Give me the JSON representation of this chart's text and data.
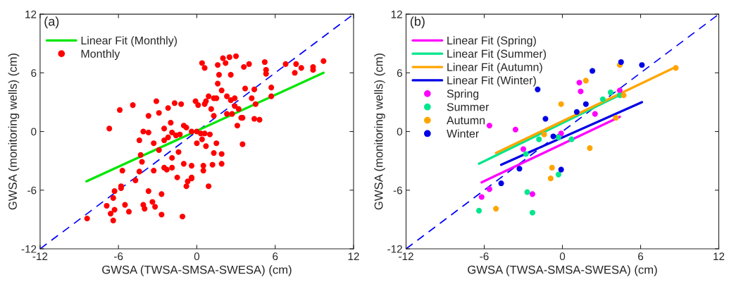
{
  "chart_data": [
    {
      "type": "scatter",
      "annotations": [
        "(a)"
      ],
      "xlabel": "GWSA (TWSA-SMSA-SWESA) (cm)",
      "ylabel": "GWSA (monitoring wells) (cm)",
      "xlim": [
        -12,
        12
      ],
      "ylim": [
        -12,
        12
      ],
      "xticks": [
        -12,
        -6,
        0,
        6,
        12
      ],
      "yticks": [
        -12,
        -6,
        0,
        6,
        12
      ],
      "grid": false,
      "legend": "top left",
      "series": [
        {
          "type": "line",
          "color": "#0000ff",
          "line_style": "dashed",
          "marker": "none",
          "x": [
            -12,
            12
          ],
          "values": [
            -12,
            12
          ]
        },
        {
          "type": "line",
          "name": "Linear Fit (Monthly)",
          "color": "#00e600",
          "line_style": "solid",
          "marker": "none",
          "x": [
            -8.45,
            9.7
          ],
          "values": [
            -5.1,
            6.0
          ]
        },
        {
          "type": "scatter",
          "name": "Monthly",
          "color": "#ff0000",
          "marker": "circle",
          "x": [
            9.7,
            8.9,
            8.9,
            8.0,
            7.6,
            7.5,
            6.8,
            5.2,
            5.3,
            5.3,
            5.7,
            5.7,
            4.0,
            3.6,
            3.0,
            2.5,
            2.0,
            2.2,
            1.6,
            1.7,
            2.6,
            0.4,
            0.6,
            1.6,
            1.9,
            3.7,
            4.4,
            4.2,
            4.5,
            2.3,
            2.9,
            2.6,
            2.9,
            3.2,
            3.4,
            3.5,
            4.4,
            4.8,
            2.3,
            2.7,
            3.1,
            3.5,
            0.9,
            1.3,
            1.5,
            -0.1,
            0.1,
            0.6,
            0.7,
            1.1,
            1.3,
            -1.7,
            -1.2,
            -2.2,
            -3.1,
            -4.9,
            -5.9,
            -2.9,
            -3.7,
            -6.7,
            -4.1,
            -3.7,
            -2.5,
            -2.0,
            -1.9,
            -1.6,
            -1.3,
            -2.2,
            -2.5,
            -1.0,
            -0.8,
            -0.4,
            0.0,
            0.3,
            0.6,
            1.0,
            0.4,
            0.0,
            0.7,
            1.5,
            1.3,
            1.9,
            1.2,
            1.9,
            0.5,
            0.5,
            -0.4,
            -1.0,
            -1.4,
            -1.9,
            -1.9,
            -2.5,
            -2.3,
            -3.3,
            -2.9,
            -4.4,
            -4.3,
            -4.2,
            -4.4,
            -3.3,
            -5.7,
            -4.7,
            -5.8,
            -5.8,
            -6.3,
            -6.4,
            -6.9,
            -6.3,
            -6.6,
            -6.4,
            -8.4,
            -5.5,
            -5.2,
            -4.1,
            -4.0,
            -3.4,
            -3.2,
            -3.7,
            -2.7,
            -2.7,
            -1.1,
            -1.5,
            -0.4,
            -0.4,
            -0.7,
            -0.8,
            0.9
          ],
          "values": [
            7.2,
            6.6,
            6.3,
            6.5,
            6.9,
            6.0,
            6.9,
            7.1,
            6.3,
            5.9,
            4.5,
            3.6,
            6.9,
            6.6,
            7.7,
            7.6,
            7.5,
            7.0,
            6.8,
            5.8,
            5.8,
            7.0,
            6.5,
            4.9,
            4.2,
            4.4,
            4.3,
            3.4,
            2.8,
            3.6,
            3.4,
            3.2,
            2.6,
            2.3,
            1.4,
            1.4,
            1.3,
            1.2,
            1.8,
            1.8,
            0.6,
            -1.3,
            3.6,
            3.4,
            3.4,
            3.1,
            2.7,
            2.8,
            3.1,
            2.3,
            1.6,
            2.9,
            2.8,
            2.4,
            3.1,
            2.7,
            2.2,
            1.9,
            1.6,
            0.3,
            0.0,
            -0.1,
            0.3,
            0.9,
            -0.1,
            -0.4,
            -0.3,
            -0.6,
            -0.9,
            0.6,
            0.4,
            0.0,
            0.0,
            -0.2,
            -0.2,
            -0.3,
            -0.8,
            -1.2,
            -1.5,
            -1.2,
            -2.2,
            -2.3,
            -3.4,
            -3.3,
            -3.5,
            -4.0,
            -3.5,
            -3.3,
            -2.1,
            -2.7,
            -3.7,
            -3.7,
            -3.9,
            -1.2,
            -1.9,
            -0.9,
            -2.4,
            -3.1,
            -4.1,
            -4.0,
            -4.0,
            -5.0,
            -5.6,
            -5.8,
            -6.1,
            -6.8,
            -7.6,
            -8.0,
            -8.4,
            -9.1,
            -8.9,
            -7.5,
            -8.2,
            -7.5,
            -7.9,
            -7.2,
            -7.7,
            -6.1,
            -6.4,
            -8.5,
            -8.7,
            -4.7,
            -4.7,
            -4.8,
            -5.1,
            -5.6,
            -5.6
          ]
        }
      ]
    },
    {
      "type": "scatter",
      "annotations": [
        "(b)"
      ],
      "xlabel": "GWSA (TWSA-SMSA-SWESA) (cm)",
      "ylabel": "GWSA (monitoring wells) (cm)",
      "xlim": [
        -12,
        12
      ],
      "ylim": [
        -12,
        12
      ],
      "xticks": [
        -12,
        -6,
        0,
        6,
        12
      ],
      "yticks": [
        -12,
        -6,
        0,
        6,
        12
      ],
      "grid": false,
      "legend": "top left",
      "series": [
        {
          "type": "line",
          "color": "#0000ff",
          "line_style": "dashed",
          "marker": "none",
          "x": [
            -12,
            12
          ],
          "values": [
            -12,
            12
          ]
        },
        {
          "type": "line",
          "name": "Linear Fit (Spring)",
          "color": "#ff00ff",
          "line_style": "solid",
          "marker": "none",
          "x": [
            -6.2,
            4.4
          ],
          "values": [
            -5.2,
            1.5
          ]
        },
        {
          "type": "line",
          "name": "Linear Fit (Summer)",
          "color": "#00e68c",
          "line_style": "solid",
          "marker": "none",
          "x": [
            -6.4,
            4.5
          ],
          "values": [
            -3.3,
            3.8
          ]
        },
        {
          "type": "line",
          "name": "Linear Fit (Autumn)",
          "color": "#ffa500",
          "line_style": "solid",
          "marker": "none",
          "x": [
            -5.1,
            8.7
          ],
          "values": [
            -2.2,
            6.6
          ]
        },
        {
          "type": "line",
          "name": "Linear Fit (Winter)",
          "color": "#0000e6",
          "line_style": "solid",
          "marker": "none",
          "x": [
            -4.7,
            6.1
          ],
          "values": [
            -3.4,
            3.0
          ]
        },
        {
          "type": "scatter",
          "name": "Spring",
          "color": "#ff00ff",
          "marker": "circle",
          "x": [
            1.3,
            1.4,
            4.4,
            2.5,
            -0.1,
            -3.6,
            -5.6,
            -3.0,
            -5.6,
            -6.2,
            -2.3
          ],
          "values": [
            5.0,
            4.1,
            4.2,
            1.8,
            -0.2,
            0.2,
            0.6,
            -1.8,
            -5.9,
            -6.7,
            -6.4
          ]
        },
        {
          "type": "scatter",
          "name": "Summer",
          "color": "#00e68c",
          "marker": "circle",
          "x": [
            3.7,
            3.1,
            4.4,
            -1.8,
            -0.3,
            0.7,
            -2.8,
            -0.3,
            -2.7,
            -6.4,
            -2.3
          ],
          "values": [
            4.0,
            3.3,
            3.7,
            -0.8,
            -0.6,
            -0.8,
            -2.3,
            -4.4,
            -6.2,
            -8.1,
            -8.3
          ]
        },
        {
          "type": "scatter",
          "name": "Autumn",
          "color": "#ffa500",
          "marker": "circle",
          "x": [
            4.4,
            1.8,
            -0.1,
            4.7,
            8.7,
            4.1,
            -1.4,
            2.1,
            -0.8,
            -0.9,
            -5.1
          ],
          "values": [
            6.8,
            5.2,
            2.8,
            3.7,
            6.5,
            1.4,
            -0.3,
            -1.7,
            -3.7,
            -4.8,
            -7.9
          ]
        },
        {
          "type": "scatter",
          "name": "Winter",
          "color": "#0000e6",
          "marker": "circle",
          "x": [
            4.5,
            6.1,
            2.3,
            -1.9,
            1.8,
            1.1,
            -1.3,
            -0.7,
            -3.3,
            -0.1,
            -4.7
          ],
          "values": [
            7.1,
            6.8,
            6.2,
            4.3,
            2.8,
            2.0,
            1.3,
            -0.5,
            -3.8,
            -3.9,
            -5.3
          ]
        }
      ]
    }
  ]
}
